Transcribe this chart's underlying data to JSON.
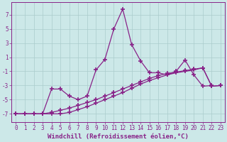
{
  "line1_x": [
    0,
    1,
    2,
    3,
    4,
    5,
    6,
    7,
    8,
    9,
    10,
    11,
    12,
    13,
    14,
    15,
    16,
    17,
    18,
    19,
    20,
    21,
    22,
    23
  ],
  "line1_y": [
    -7,
    -7,
    -7,
    -7,
    -3.5,
    -3.5,
    -4.5,
    -5.0,
    -4.5,
    -0.8,
    0.7,
    5.0,
    7.8,
    2.8,
    0.5,
    -1.2,
    -1.2,
    -1.5,
    -1.0,
    0.6,
    -1.5,
    -3.1,
    -3.0,
    null
  ],
  "line2_x": [
    0,
    1,
    2,
    3,
    4,
    5,
    6,
    7,
    8,
    9,
    10,
    11,
    12,
    13,
    14,
    15,
    16,
    17,
    18,
    19,
    20,
    21,
    22,
    23
  ],
  "line2_y": [
    -7,
    -7,
    -7,
    -7,
    -6.8,
    -6.5,
    -6.2,
    -5.8,
    -5.4,
    -5.0,
    -4.5,
    -4.0,
    -3.5,
    -3.0,
    -2.5,
    -2.0,
    -1.6,
    -1.3,
    -1.1,
    -0.9,
    -0.7,
    -0.5,
    -3.1,
    -3.0
  ],
  "line3_x": [
    0,
    1,
    2,
    3,
    4,
    5,
    6,
    7,
    8,
    9,
    10,
    11,
    12,
    13,
    14,
    15,
    16,
    17,
    18,
    19,
    20,
    21,
    22,
    23
  ],
  "line3_y": [
    -7,
    -7,
    -7,
    -7,
    -7,
    -7,
    -6.8,
    -6.4,
    -6.0,
    -5.5,
    -5.0,
    -4.5,
    -4.0,
    -3.4,
    -2.8,
    -2.3,
    -1.9,
    -1.5,
    -1.2,
    -1.0,
    -0.8,
    -0.5,
    -3.1,
    -3.0
  ],
  "bg_color": "#cce8e8",
  "line_color": "#882288",
  "marker": "+",
  "markersize": 4,
  "markeredgewidth": 1.2,
  "linewidth": 0.9,
  "xlabel": "Windchill (Refroidissement éolien,°C)",
  "ylabel": "",
  "yticks": [
    -7,
    -5,
    -3,
    -1,
    1,
    3,
    5,
    7
  ],
  "xticks": [
    0,
    1,
    2,
    3,
    4,
    5,
    6,
    7,
    8,
    9,
    10,
    11,
    12,
    13,
    14,
    15,
    16,
    17,
    18,
    19,
    20,
    21,
    22,
    23
  ],
  "xlim": [
    -0.5,
    23.5
  ],
  "ylim": [
    -8.2,
    8.8
  ],
  "grid_color": "#aacccc",
  "xlabel_fontsize": 6.5,
  "tick_fontsize": 5.5
}
